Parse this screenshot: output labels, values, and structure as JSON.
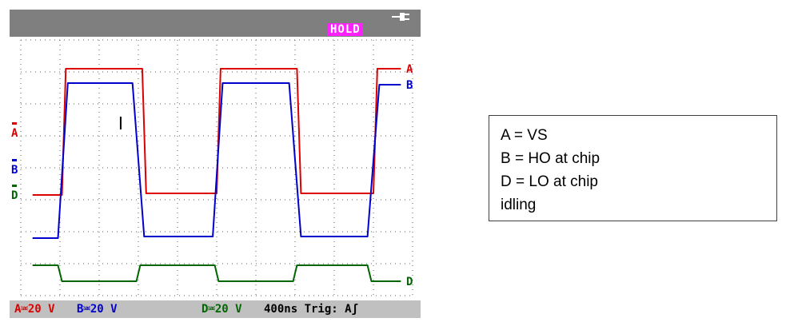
{
  "scope": {
    "hold_label": "HOLD",
    "power_icon": "plug-icon",
    "bottom": {
      "a_range": "A⎃20 V",
      "b_range": "B⎃20 V",
      "d_range": "D⎃20 V",
      "timebase_trigger": "400ns Trig: Aʃ"
    },
    "colors": {
      "A": "#dd0000",
      "B": "#0000cc",
      "D": "#006600",
      "topbar": "#7f7f7f",
      "bottombar": "#c0c0c0",
      "hold_bg": "#ff22ff",
      "grid": "#606060"
    }
  },
  "legend": {
    "lines": [
      "A = VS",
      "B = HO at chip",
      "D = LO at chip",
      "idling"
    ]
  },
  "chart_data": {
    "type": "line",
    "xlabel": "",
    "ylabel": "",
    "x_unit": "divisions (400ns/div)",
    "xlim": [
      0,
      10
    ],
    "ylim": [
      0,
      8
    ],
    "grid": true,
    "series": [
      {
        "name": "A",
        "ground_marker_y": 5.1,
        "x": [
          0.3,
          1.05,
          1.15,
          3.1,
          3.2,
          5.0,
          5.1,
          7.05,
          7.15,
          9.0,
          9.1,
          9.7
        ],
        "y": [
          3.15,
          3.15,
          7.1,
          7.1,
          3.2,
          3.2,
          7.1,
          7.1,
          3.2,
          3.2,
          7.1,
          7.1
        ]
      },
      {
        "name": "B",
        "ground_marker_y": 3.95,
        "x": [
          0.3,
          0.95,
          1.2,
          2.85,
          3.15,
          4.9,
          5.15,
          6.85,
          7.15,
          8.85,
          9.15,
          9.7
        ],
        "y": [
          1.8,
          1.8,
          6.65,
          6.65,
          1.85,
          1.85,
          6.65,
          6.65,
          1.85,
          1.85,
          6.6,
          6.6
        ]
      },
      {
        "name": "D",
        "ground_marker_y": 3.15,
        "x": [
          0.3,
          0.95,
          1.05,
          2.95,
          3.05,
          4.95,
          5.05,
          6.95,
          7.05,
          8.85,
          8.95,
          9.7
        ],
        "y": [
          0.95,
          0.95,
          0.45,
          0.45,
          0.95,
          0.95,
          0.45,
          0.45,
          0.95,
          0.95,
          0.45,
          0.45
        ]
      }
    ]
  }
}
